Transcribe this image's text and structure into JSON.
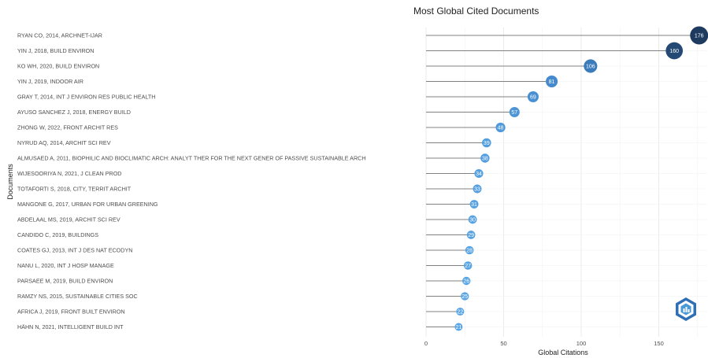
{
  "chart_data": {
    "type": "scatter",
    "subtype": "lollipop",
    "title": "Most Global Cited Documents",
    "xlabel": "Global Citations",
    "ylabel": "Documents",
    "xlim": [
      0,
      182
    ],
    "xticks": [
      0,
      50,
      100,
      150
    ],
    "grid": true,
    "colors": {
      "low": "#5aa6e6",
      "mid": "#3d82c4",
      "high": "#1e3a5f",
      "stem": "#808080",
      "grid": "#ebebeb"
    },
    "categories": [
      "RYAN CO, 2014, ARCHNET-IJAR",
      "YIN J, 2018, BUILD ENVIRON",
      "KO WH, 2020, BUILD ENVIRON",
      "YIN J, 2019, INDOOR AIR",
      "GRAY T, 2014, INT J ENVIRON RES PUBLIC HEALTH",
      "AYUSO SANCHEZ J, 2018, ENERGY BUILD",
      "ZHONG W, 2022, FRONT ARCHIT RES",
      "NYRUD AQ, 2014, ARCHIT SCI REV",
      "ALMUSAED A, 2011, BIOPHILIC AND BIOCLIMATIC ARCH: ANALYT THER FOR THE NEXT GENER OF PASSIVE SUSTAINABLE ARCH",
      "WIJESOORIYA N, 2021, J CLEAN PROD",
      "TOTAFORTI S, 2018, CITY, TERRIT ARCHIT",
      "MANGONE G, 2017, URBAN FOR URBAN GREENING",
      "ABDELAAL MS, 2019, ARCHIT SCI REV",
      "CANDIDO C, 2019, BUILDINGS",
      "COATES GJ, 2013, INT J DES NAT ECODYN",
      "NANU L, 2020, INT J HOSP MANAGE",
      "PARSAEE M, 2019, BUILD ENVIRON",
      "RAMZY NS, 2015, SUSTAINABLE CITIES SOC",
      "AFRICA J, 2019, FRONT BUILT ENVIRON",
      "HÄHN N, 2021, INTELLIGENT BUILD INT"
    ],
    "values": [
      176,
      160,
      106,
      81,
      69,
      57,
      48,
      39,
      38,
      34,
      33,
      31,
      30,
      29,
      28,
      27,
      26,
      25,
      22,
      21
    ],
    "point_labels": [
      "176",
      "160",
      "106",
      "81",
      "69",
      "57",
      "48",
      "39",
      "38",
      "34",
      "33",
      "31",
      "30",
      "29",
      "28",
      "27",
      "26",
      "25",
      "22",
      "21"
    ]
  },
  "logo": {
    "icon": "bibliometrix-hexagon-logo"
  }
}
